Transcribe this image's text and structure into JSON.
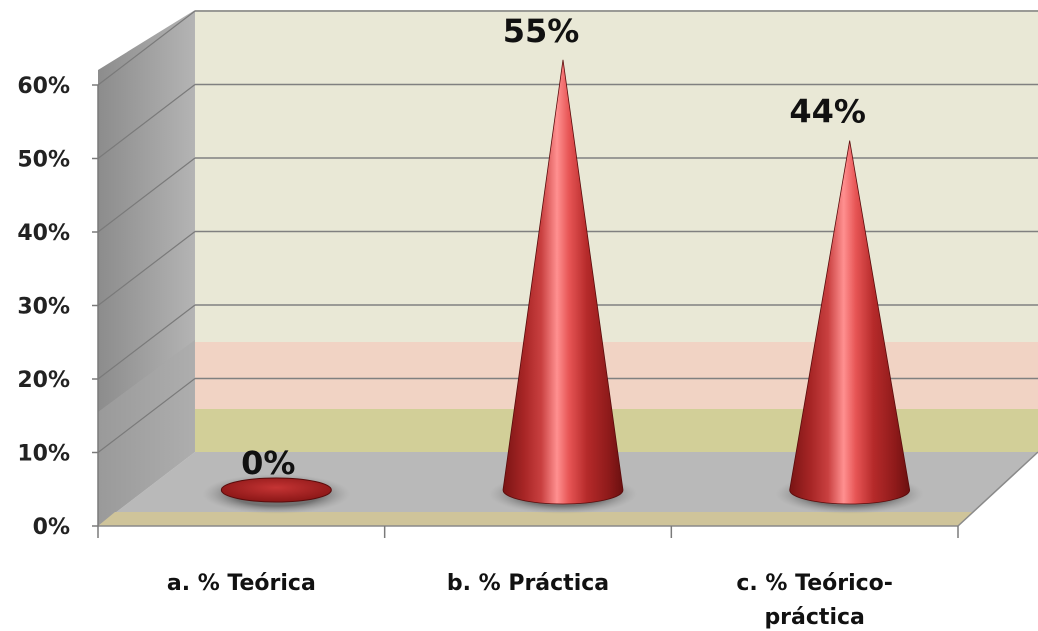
{
  "chart_data": {
    "type": "bar",
    "categories": [
      [
        "a.  % Teórica"
      ],
      [
        "b. % Práctica"
      ],
      [
        "c. % Teórico-",
        "práctica"
      ]
    ],
    "values": [
      0,
      55,
      44
    ],
    "data_labels": [
      "0%",
      "55%",
      "44%"
    ],
    "y_ticks": [
      "0%",
      "10%",
      "20%",
      "30%",
      "40%",
      "50%",
      "60%"
    ],
    "ylim": [
      0,
      60
    ],
    "title": "",
    "xlabel": "",
    "ylabel": "",
    "grid": true,
    "legend": "none",
    "colors": {
      "cone_dark": "#8e1f1f",
      "cone_mid": "#c73a3a",
      "cone_light": "#ff8a8a",
      "back_wall": "#e9e8d6",
      "back_wall_pink": "#f1d3c4",
      "back_wall_olive": "#d2cf98",
      "side_wall": "#9e9e9e",
      "floor": "#b9b9b9",
      "floor_front": "#cfc49a"
    }
  }
}
